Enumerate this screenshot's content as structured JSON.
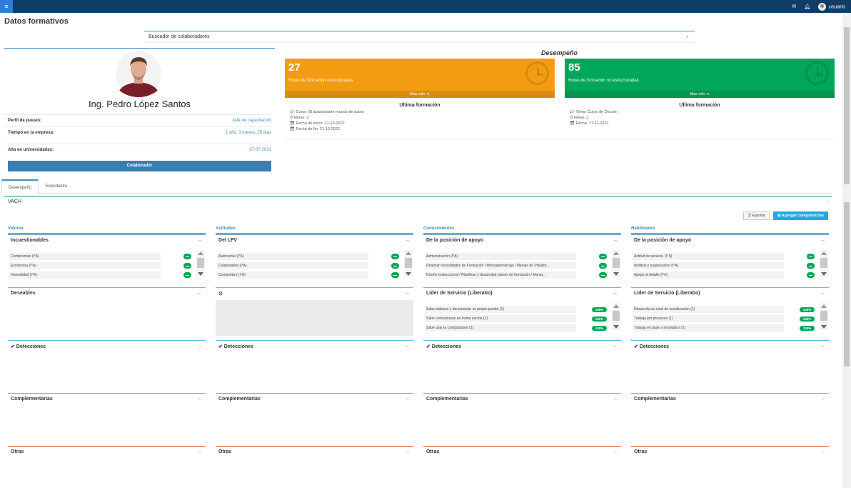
{
  "topbar": {
    "menu_glyph": "≡",
    "user_label": "usuario",
    "mail_glyph": "✉",
    "bell_glyph": "🔔︎"
  },
  "page": {
    "title": "Datos formativos"
  },
  "search": {
    "label": "Buscador de colaboradores",
    "plus": "+"
  },
  "profile": {
    "name": "Ing. Pedro López Santos",
    "rows": [
      {
        "label": "Perfil de puesto:",
        "value": "Jefe de capacitación"
      },
      {
        "label": "Tiempo en la empresa:",
        "value": "1 año, 3 meses, 25 días"
      },
      {
        "label": "Alta en universidades:",
        "value": "27-07-2021"
      }
    ],
    "button": "Colaborador"
  },
  "desempeno": {
    "title": "Desempeño",
    "kpis": [
      {
        "value": "27",
        "label": "Horas de formación estructuradas",
        "more": "Mas info ➔",
        "color": "#f39c12"
      },
      {
        "value": "85",
        "label": "Horas de formación no estructuradas",
        "more": "Mas info ➔",
        "color": "#00a65a"
      }
    ],
    "ultima_left": {
      "title": "Ultima formación",
      "lines": [
        "🎓︎ Curso: El apasionante mundo de datos",
        "⏱︎ Horas: 2",
        "📅︎ Fecha de inicio: 21-10-2022",
        "📅︎ Fecha de fin: 21-10-2022"
      ]
    },
    "ultima_right": {
      "title": "Ultima formación",
      "lines": [
        "🎓︎ Tema: Curso de Dicción",
        "⏱︎ Horas: 1",
        "📅︎ Fecha: 17-11-2022"
      ]
    }
  },
  "tabs": [
    {
      "label": "Desempeño"
    },
    {
      "label": "Expediente"
    }
  ],
  "vach": {
    "title": "VACH",
    "minus": "–"
  },
  "actions": {
    "export": "🖹 Exportar",
    "add": "⊞ Agregar competencias"
  },
  "columns": [
    {
      "label": "Valores",
      "boxes": [
        {
          "title": "Incuestionables",
          "items": [
            {
              "text": "Compromiso (I°A)",
              "kind": "toggle"
            },
            {
              "text": "Excelencia (I°A)",
              "kind": "toggle"
            },
            {
              "text": "Honestidad (I°A)",
              "kind": "toggle"
            }
          ]
        },
        {
          "title": "Deseables",
          "items": []
        },
        {
          "title": "✔ Detecciones",
          "items": []
        },
        {
          "title": "Complementarias",
          "items": []
        },
        {
          "title": "Otras",
          "items": []
        }
      ]
    },
    {
      "label": "Actitudes",
      "boxes": [
        {
          "title": "Del LFV",
          "items": [
            {
              "text": "Autonomía (I°A)",
              "kind": "toggle"
            },
            {
              "text": "Colaborativo (I°A)",
              "kind": "toggle"
            },
            {
              "text": "Competitivo (I°A)",
              "kind": "toggle"
            }
          ]
        },
        {
          "title": "⊙",
          "items": []
        },
        {
          "title": "✔ Detecciones",
          "items": []
        },
        {
          "title": "Complementarias",
          "items": []
        },
        {
          "title": "Otras",
          "items": []
        }
      ]
    },
    {
      "label": "Conocimientos",
      "boxes": [
        {
          "title": "De la posición de apoyo",
          "items": [
            {
              "text": "Administración (I°A)",
              "kind": "toggle"
            },
            {
              "text": "Detectar necesidades de Formación / Microaprendizaje / Manejo de Platafor...",
              "kind": "toggle"
            },
            {
              "text": "Diseño Instruccional / Planificar y desarrollar planes de formación / Manej...",
              "kind": "toggle"
            }
          ]
        },
        {
          "title": "Líder de Servicio (Liberatio)",
          "items": [
            {
              "text": "Sabe elaborar y documentar su propio puesto (1)",
              "kind": "pct",
              "pct": "100%"
            },
            {
              "text": "Sabe comunicarse en forma escrita (1)",
              "kind": "pct",
              "pct": "100%"
            },
            {
              "text": "Sabe usar la computadora (1)",
              "kind": "pct",
              "pct": "100%"
            }
          ]
        },
        {
          "title": "✔ Detecciones",
          "items": []
        },
        {
          "title": "Complementarias",
          "items": []
        },
        {
          "title": "Otras",
          "items": []
        }
      ]
    },
    {
      "label": "Habilidades",
      "boxes": [
        {
          "title": "De la posición de apoyo",
          "items": [
            {
              "text": "Actitud de servicio. (I°A)",
              "kind": "toggle"
            },
            {
              "text": "Análisis y organización (I°A)",
              "kind": "toggle"
            },
            {
              "text": "Apego al detalle (I°A)",
              "kind": "toggle"
            }
          ]
        },
        {
          "title": "Líder de Servicio (Liberatio)",
          "items": [
            {
              "text": "Desarrolla su nivel de socialización (1)",
              "kind": "pct",
              "pct": "100%"
            },
            {
              "text": "Trabaja por procesos (1)",
              "kind": "pct",
              "pct": "100%"
            },
            {
              "text": "Trabaja en base a resultados (1)",
              "kind": "pct",
              "pct": "100%"
            }
          ]
        },
        {
          "title": "✔ Detecciones",
          "items": []
        },
        {
          "title": "Complementarias",
          "items": []
        },
        {
          "title": "Otras",
          "items": []
        }
      ]
    }
  ]
}
